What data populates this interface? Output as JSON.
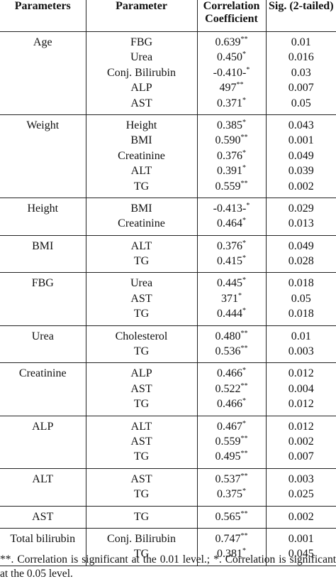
{
  "headers": {
    "parameters": "Parameters",
    "parameter": "Parameter",
    "correlation": "Correlation Coefficient",
    "sig": "Sig. (2-tailed)"
  },
  "groups": [
    {
      "parameter": "Age",
      "rows": [
        {
          "param": "FBG",
          "corr": "0.639",
          "stars": "**",
          "sig": "0.01"
        },
        {
          "param": "Urea",
          "corr": "0.450",
          "stars": "*",
          "sig": "0.016"
        },
        {
          "param": "Conj. Bilirubin",
          "corr": "-0.410-",
          "stars": "*",
          "sig": "0.03"
        },
        {
          "param": "ALP",
          "corr": "497",
          "stars": "**",
          "sig": "0.007"
        },
        {
          "param": "AST",
          "corr": "0.371",
          "stars": "*",
          "sig": "0.05"
        }
      ]
    },
    {
      "parameter": "Weight",
      "rows": [
        {
          "param": "Height",
          "corr": "0.385",
          "stars": "*",
          "sig": "0.043"
        },
        {
          "param": "BMI",
          "corr": "0.590",
          "stars": "**",
          "sig": "0.001"
        },
        {
          "param": "Creatinine",
          "corr": "0.376",
          "stars": "*",
          "sig": "0.049"
        },
        {
          "param": "ALT",
          "corr": "0.391",
          "stars": "*",
          "sig": "0.039"
        },
        {
          "param": "TG",
          "corr": "0.559",
          "stars": "**",
          "sig": "0.002"
        }
      ]
    },
    {
      "parameter": "Height",
      "rows": [
        {
          "param": "BMI",
          "corr": "-0.413-",
          "stars": "*",
          "sig": "0.029"
        },
        {
          "param": "Creatinine",
          "corr": "0.464",
          "stars": "*",
          "sig": "0.013"
        }
      ]
    },
    {
      "parameter": "BMI",
      "rows": [
        {
          "param": "ALT",
          "corr": "0.376",
          "stars": "*",
          "sig": "0.049"
        },
        {
          "param": "TG",
          "corr": "0.415",
          "stars": "*",
          "sig": "0.028"
        }
      ]
    },
    {
      "parameter": "FBG",
      "rows": [
        {
          "param": "Urea",
          "corr": "0.445",
          "stars": "*",
          "sig": "0.018"
        },
        {
          "param": "AST",
          "corr": "371",
          "stars": "*",
          "sig": "0.05"
        },
        {
          "param": "TG",
          "corr": "0.444",
          "stars": "*",
          "sig": "0.018"
        }
      ]
    },
    {
      "parameter": "Urea",
      "rows": [
        {
          "param": "Cholesterol",
          "corr": "0.480",
          "stars": "**",
          "sig": "0.01"
        },
        {
          "param": "TG",
          "corr": "0.536",
          "stars": "**",
          "sig": "0.003"
        }
      ]
    },
    {
      "parameter": "Creatinine",
      "rows": [
        {
          "param": "ALP",
          "corr": "0.466",
          "stars": "*",
          "sig": "0.012"
        },
        {
          "param": "AST",
          "corr": "0.522",
          "stars": "**",
          "sig": "0.004"
        },
        {
          "param": "TG",
          "corr": "0.466",
          "stars": "*",
          "sig": "0.012"
        }
      ]
    },
    {
      "parameter": "ALP",
      "rows": [
        {
          "param": "ALT",
          "corr": "0.467",
          "stars": "*",
          "sig": "0.012"
        },
        {
          "param": "AST",
          "corr": "0.559",
          "stars": "**",
          "sig": "0.002"
        },
        {
          "param": "TG",
          "corr": "0.495",
          "stars": "**",
          "sig": "0.007"
        }
      ]
    },
    {
      "parameter": "ALT",
      "rows": [
        {
          "param": "AST",
          "corr": "0.537",
          "stars": "**",
          "sig": "0.003"
        },
        {
          "param": "TG",
          "corr": "0.375",
          "stars": "*",
          "sig": "0.025"
        }
      ]
    },
    {
      "parameter": "AST",
      "rows": [
        {
          "param": "TG",
          "corr": "0.565",
          "stars": "**",
          "sig": "0.002"
        }
      ]
    },
    {
      "parameter": "Total bilirubin",
      "rows": [
        {
          "param": "Conj. Bilirubin",
          "corr": "0.747",
          "stars": "**",
          "sig": "0.001"
        },
        {
          "param": "TG",
          "corr": "0.381",
          "stars": "*",
          "sig": "0.045"
        }
      ]
    }
  ],
  "footnote": "**. Correlation is significant at the 0.01 level.; *. Correlation is significant at the 0.05 level."
}
